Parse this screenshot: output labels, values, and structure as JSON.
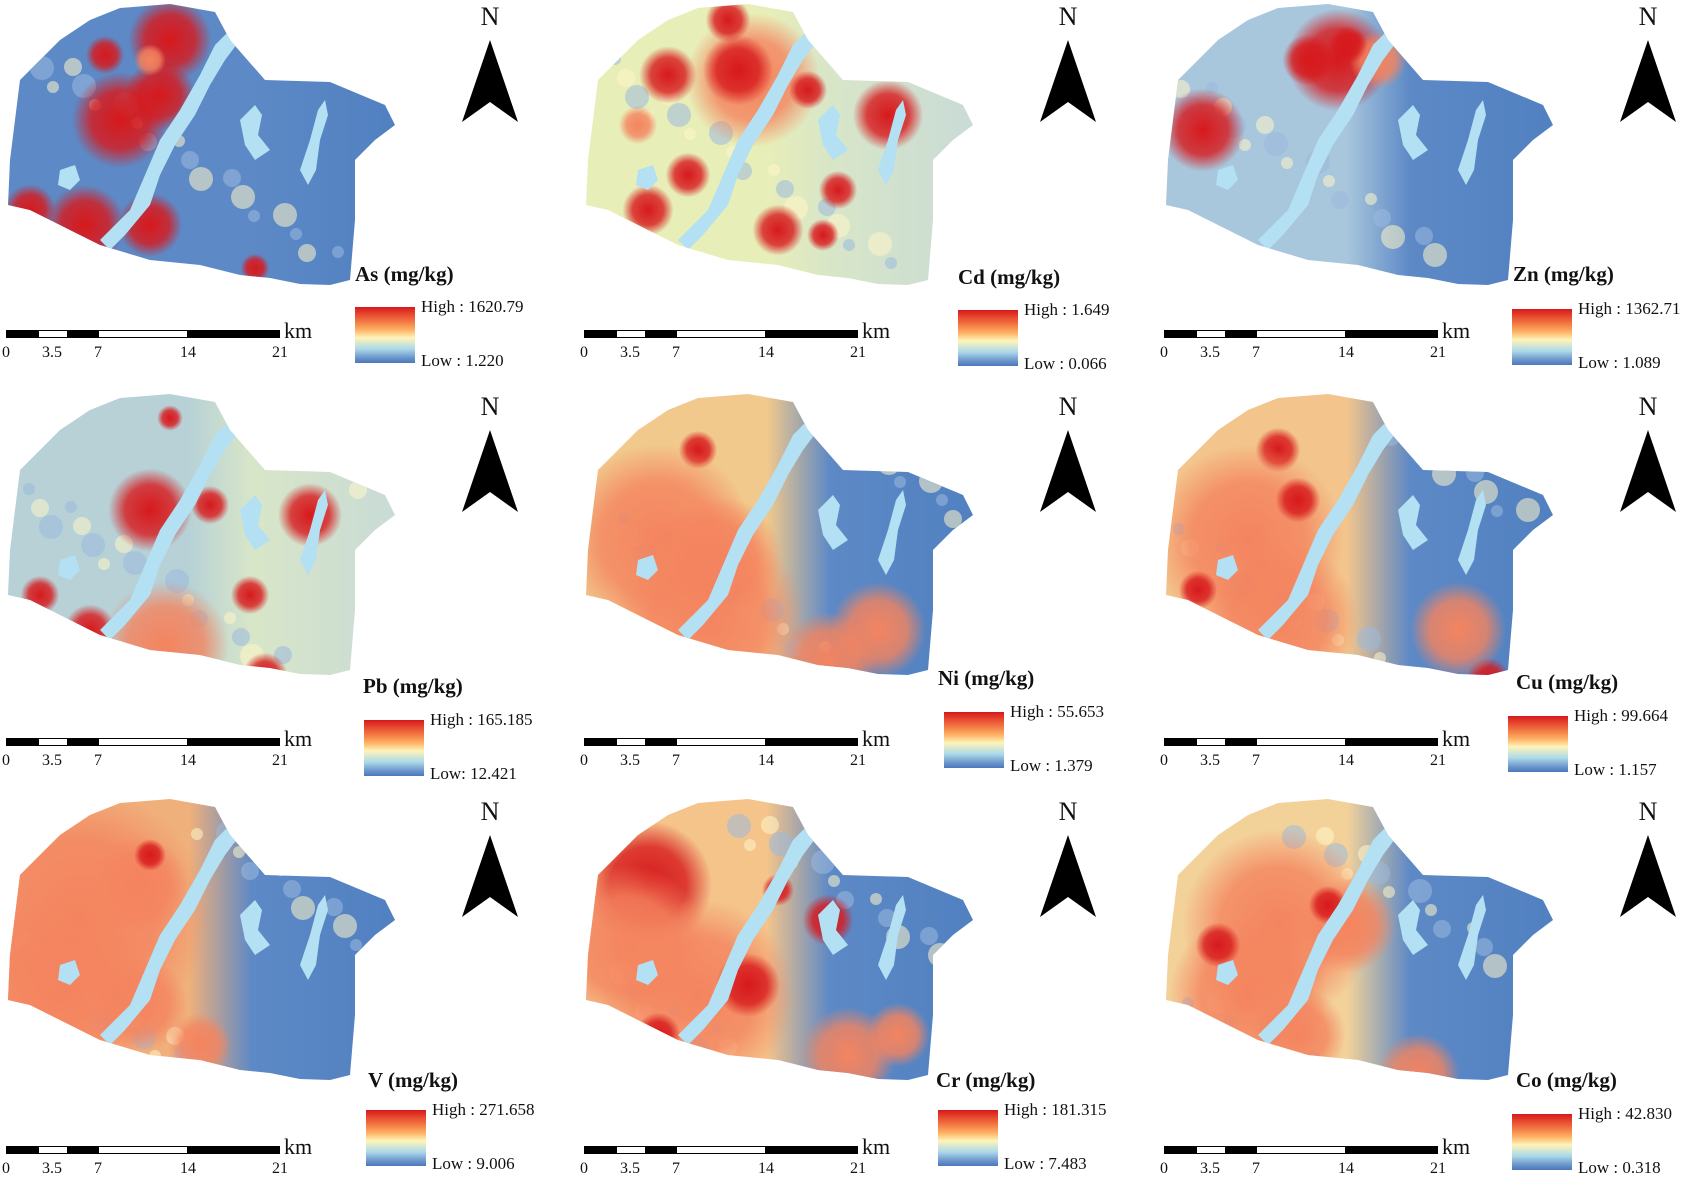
{
  "scale_bar": {
    "unit": "km",
    "ticks": [
      "0",
      "3.5",
      "7",
      "14",
      "21"
    ]
  },
  "north_label": "N",
  "panels": [
    {
      "element": "As",
      "title": "As (mg/kg)",
      "high": "High : 1620.79",
      "low": "Low : 1.220",
      "hotspots_text": "",
      "colors": {
        "high": "#d7191c",
        "low": "#4a78bd"
      }
    },
    {
      "element": "Cd",
      "title": "Cd (mg/kg)",
      "high": "High : 1.649",
      "low": "Low : 0.066"
    },
    {
      "element": "Zn",
      "title": "Zn (mg/kg)",
      "high": "High : 1362.71",
      "low": "Low : 1.089"
    },
    {
      "element": "Pb",
      "title": "Pb (mg/kg)",
      "high": "High : 165.185",
      "low": "Low: 12.421"
    },
    {
      "element": "Ni",
      "title": "Ni (mg/kg)",
      "high": "High : 55.653",
      "low": "Low : 1.379"
    },
    {
      "element": "Cu",
      "title": "Cu (mg/kg)",
      "high": "High : 99.664",
      "low": "Low : 1.157"
    },
    {
      "element": "V",
      "title": "V (mg/kg)",
      "high": "High : 271.658",
      "low": "Low : 9.006"
    },
    {
      "element": "Cr",
      "title": "Cr (mg/kg)",
      "high": "High : 181.315",
      "low": "Low : 7.483"
    },
    {
      "element": "Co",
      "title": "Co (mg/kg)",
      "high": "High : 42.830",
      "low": "Low : 0.318"
    }
  ],
  "ramp_colors": [
    "#d7191c",
    "#fdae61",
    "#fff4b8",
    "#abd9e9",
    "#4a78bd"
  ],
  "river_color": "#b3e0f2"
}
